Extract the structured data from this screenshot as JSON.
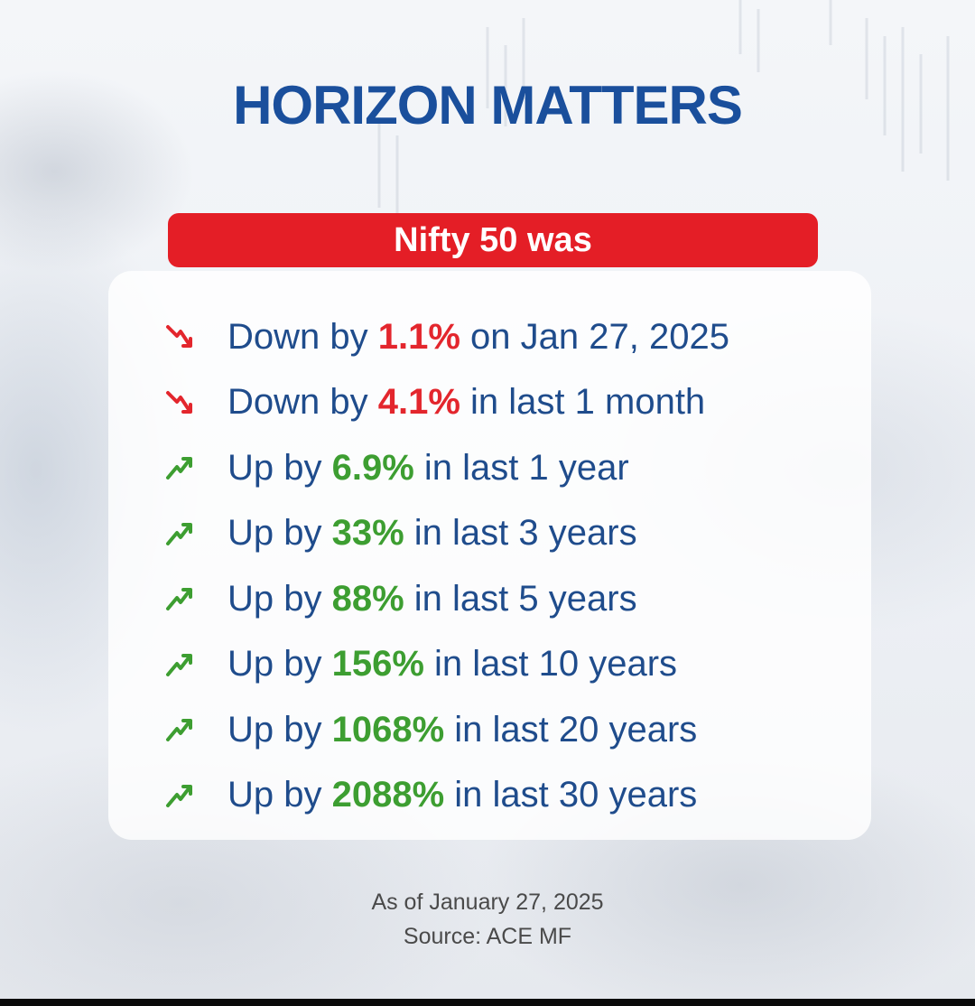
{
  "title": "HORIZON MATTERS",
  "banner": "Nifty 50 was",
  "colors": {
    "title": "#1a4f9c",
    "banner": "#e41e26",
    "down": "#e3262d",
    "up": "#3d9e31",
    "text": "#1f4c8c"
  },
  "rows": [
    {
      "trend": "down",
      "icon": "trend-down-icon",
      "prefix": "Down by ",
      "value": "1.1%",
      "suffix": " on Jan 27, 2025"
    },
    {
      "trend": "down",
      "icon": "trend-down-icon",
      "prefix": "Down by ",
      "value": "4.1%",
      "suffix": " in last 1 month"
    },
    {
      "trend": "up",
      "icon": "trend-up-icon",
      "prefix": "Up by ",
      "value": "6.9%",
      "suffix": " in last 1 year"
    },
    {
      "trend": "up",
      "icon": "trend-up-icon",
      "prefix": "Up by ",
      "value": "33%",
      "suffix": " in last 3 years"
    },
    {
      "trend": "up",
      "icon": "trend-up-icon",
      "prefix": "Up by ",
      "value": "88%",
      "suffix": " in last 5 years"
    },
    {
      "trend": "up",
      "icon": "trend-up-icon",
      "prefix": "Up by ",
      "value": "156%",
      "suffix": " in last 10 years"
    },
    {
      "trend": "up",
      "icon": "trend-up-icon",
      "prefix": "Up by ",
      "value": "1068%",
      "suffix": " in last 20 years"
    },
    {
      "trend": "up",
      "icon": "trend-up-icon",
      "prefix": "Up by ",
      "value": "2088%",
      "suffix": " in last 30 years"
    }
  ],
  "footer": {
    "as_of": "As of January 27, 2025",
    "source": "Source: ACE MF"
  }
}
